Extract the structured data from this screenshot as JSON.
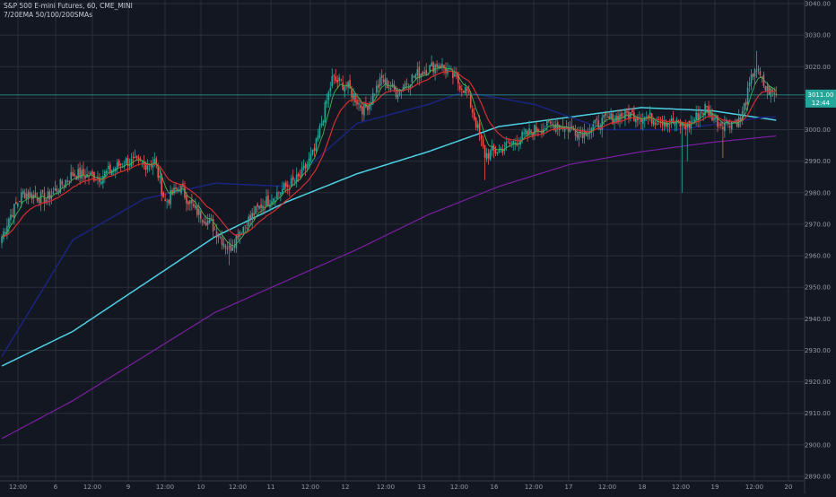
{
  "header": {
    "symbol_line": "S&P 500 E-mini Futures, 60, CME_MINI",
    "indicator_line": "7/20EMA 50/100/200SMAs"
  },
  "price_label": {
    "value": "3011.00",
    "countdown": "12:44"
  },
  "colors": {
    "background": "#131722",
    "grid": "#2a2e39",
    "up": "#26a69a",
    "down": "#ef5350",
    "ema7": "#4caf50",
    "ema20": "#d32f2f",
    "sma50": "#1a237e",
    "sma100": "#4dd0e1",
    "sma200": "#7b1fa2",
    "price_line": "#26a69a",
    "price_box": "#26a69a"
  },
  "chart_data": {
    "type": "candlestick",
    "title": "S&P 500 E-mini Futures, 60, CME_MINI",
    "indicators": "7/20EMA 50/100/200SMAs",
    "y_axis": {
      "ylim": [
        2887,
        3042
      ],
      "ticks": [
        "2890.00",
        "2900.00",
        "2910.00",
        "2920.00",
        "2930.00",
        "2940.00",
        "2950.00",
        "2960.00",
        "2970.00",
        "2980.00",
        "2990.00",
        "3000.00",
        "3010.00",
        "3020.00",
        "3030.00",
        "3040.00"
      ]
    },
    "x_axis": {
      "ticks": [
        "12:00",
        "6",
        "12:00",
        "9",
        "12:00",
        "10",
        "12:00",
        "11",
        "12:00",
        "12",
        "12:00",
        "13",
        "12:00",
        "16",
        "12:00",
        "17",
        "12:00",
        "18",
        "12:00",
        "19",
        "12:00",
        "20"
      ]
    },
    "current_price": 3011.0,
    "anchors": [
      {
        "x": 0,
        "close": 2966
      },
      {
        "x": 4,
        "close": 2972
      },
      {
        "x": 12,
        "close": 2980
      },
      {
        "x": 25,
        "close": 2978
      },
      {
        "x": 40,
        "close": 2986
      },
      {
        "x": 55,
        "close": 2985
      },
      {
        "x": 70,
        "close": 2990
      },
      {
        "x": 80,
        "close": 2989
      },
      {
        "x": 86,
        "close": 2990
      },
      {
        "x": 92,
        "close": 2977
      },
      {
        "x": 100,
        "close": 2982
      },
      {
        "x": 108,
        "close": 2975
      },
      {
        "x": 118,
        "close": 2970
      },
      {
        "x": 128,
        "close": 2962
      },
      {
        "x": 134,
        "close": 2968
      },
      {
        "x": 146,
        "close": 2976
      },
      {
        "x": 158,
        "close": 2981
      },
      {
        "x": 168,
        "close": 2985
      },
      {
        "x": 176,
        "close": 2993
      },
      {
        "x": 186,
        "close": 3016
      },
      {
        "x": 194,
        "close": 3014
      },
      {
        "x": 204,
        "close": 3006
      },
      {
        "x": 214,
        "close": 3016
      },
      {
        "x": 222,
        "close": 3012
      },
      {
        "x": 232,
        "close": 3017
      },
      {
        "x": 246,
        "close": 3021
      },
      {
        "x": 252,
        "close": 3018
      },
      {
        "x": 262,
        "close": 3012
      },
      {
        "x": 272,
        "close": 2992
      },
      {
        "x": 282,
        "close": 2994
      },
      {
        "x": 300,
        "close": 3000
      },
      {
        "x": 312,
        "close": 3002
      },
      {
        "x": 326,
        "close": 2999
      },
      {
        "x": 340,
        "close": 3003
      },
      {
        "x": 352,
        "close": 3005
      },
      {
        "x": 372,
        "close": 3003
      },
      {
        "x": 386,
        "close": 3001
      },
      {
        "x": 396,
        "close": 3007
      },
      {
        "x": 404,
        "close": 3002
      },
      {
        "x": 416,
        "close": 3003
      },
      {
        "x": 424,
        "close": 3020
      },
      {
        "x": 430,
        "close": 3013
      },
      {
        "x": 436,
        "close": 3011
      }
    ],
    "sma50": [
      [
        0,
        2928
      ],
      [
        40,
        2965
      ],
      [
        80,
        2978
      ],
      [
        120,
        2983
      ],
      [
        160,
        2982
      ],
      [
        200,
        3002
      ],
      [
        240,
        3008
      ],
      [
        260,
        3012
      ],
      [
        300,
        3008
      ],
      [
        340,
        3000
      ],
      [
        380,
        3000
      ],
      [
        430,
        3004
      ],
      [
        436,
        3004
      ]
    ],
    "sma100": [
      [
        0,
        2925
      ],
      [
        40,
        2936
      ],
      [
        80,
        2951
      ],
      [
        120,
        2966
      ],
      [
        160,
        2977
      ],
      [
        200,
        2986
      ],
      [
        240,
        2993
      ],
      [
        280,
        3001
      ],
      [
        320,
        3004
      ],
      [
        360,
        3007
      ],
      [
        400,
        3006
      ],
      [
        436,
        3003
      ]
    ],
    "sma200": [
      [
        0,
        2902
      ],
      [
        40,
        2914
      ],
      [
        80,
        2928
      ],
      [
        120,
        2942
      ],
      [
        160,
        2952
      ],
      [
        200,
        2962
      ],
      [
        240,
        2973
      ],
      [
        280,
        2982
      ],
      [
        320,
        2989
      ],
      [
        360,
        2993
      ],
      [
        400,
        2996
      ],
      [
        436,
        2998
      ]
    ]
  }
}
